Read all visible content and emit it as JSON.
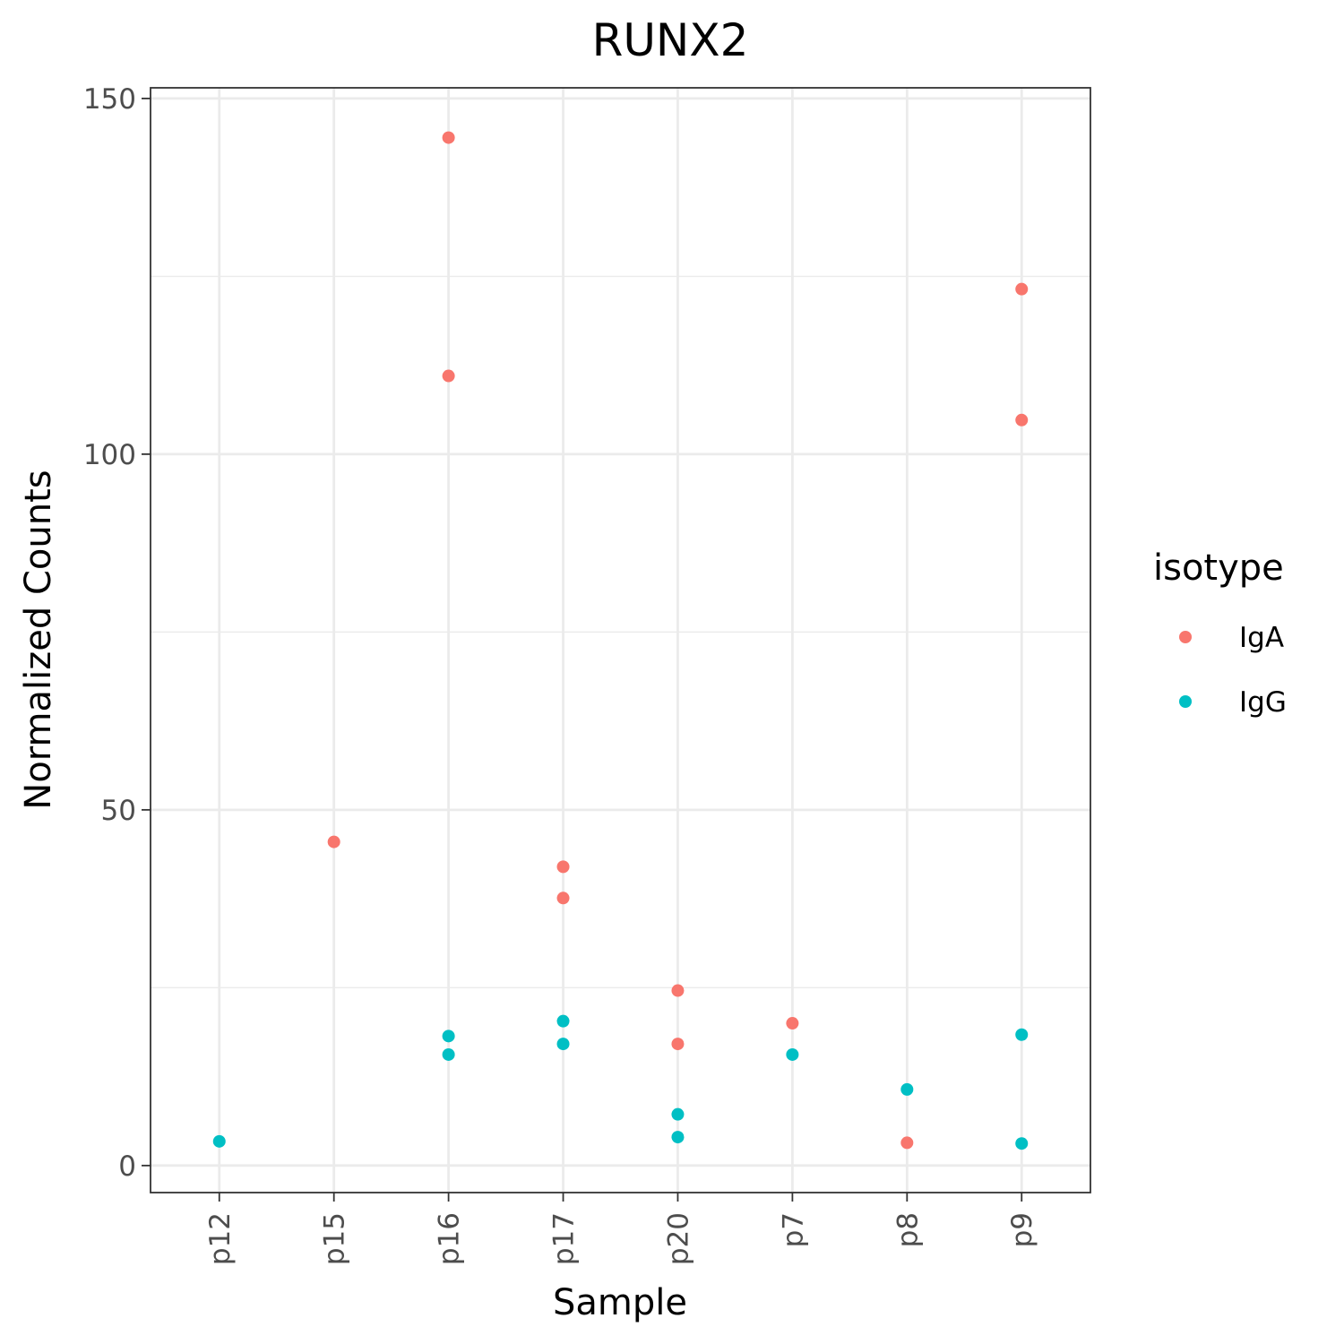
{
  "chart_data": {
    "type": "scatter",
    "title": "RUNX2",
    "xlabel": "Sample",
    "ylabel": "Normalized Counts",
    "categories": [
      "p12",
      "p15",
      "p16",
      "p17",
      "p20",
      "p7",
      "p8",
      "p9"
    ],
    "ylim": [
      -3.8,
      151.5
    ],
    "yticks": [
      0,
      50,
      100,
      150
    ],
    "grid": true,
    "legend": {
      "title": "isotype",
      "placement": "right"
    },
    "series": [
      {
        "name": "IgA",
        "color": "#F8766D",
        "points": [
          {
            "x": "p15",
            "y": 45.5
          },
          {
            "x": "p16",
            "y": 144.5
          },
          {
            "x": "p16",
            "y": 111
          },
          {
            "x": "p17",
            "y": 42
          },
          {
            "x": "p17",
            "y": 37.6
          },
          {
            "x": "p20",
            "y": 24.6
          },
          {
            "x": "p20",
            "y": 17.1
          },
          {
            "x": "p7",
            "y": 20
          },
          {
            "x": "p8",
            "y": 3.2
          },
          {
            "x": "p9",
            "y": 123.2
          },
          {
            "x": "p9",
            "y": 104.8
          }
        ]
      },
      {
        "name": "IgG",
        "color": "#00BFC4",
        "points": [
          {
            "x": "p12",
            "y": 3.4
          },
          {
            "x": "p16",
            "y": 18.2
          },
          {
            "x": "p16",
            "y": 15.6
          },
          {
            "x": "p17",
            "y": 20.3
          },
          {
            "x": "p17",
            "y": 17.1
          },
          {
            "x": "p20",
            "y": 7.2
          },
          {
            "x": "p20",
            "y": 4
          },
          {
            "x": "p7",
            "y": 15.6
          },
          {
            "x": "p8",
            "y": 10.7
          },
          {
            "x": "p9",
            "y": 18.4
          },
          {
            "x": "p9",
            "y": 3.1
          }
        ]
      }
    ]
  }
}
